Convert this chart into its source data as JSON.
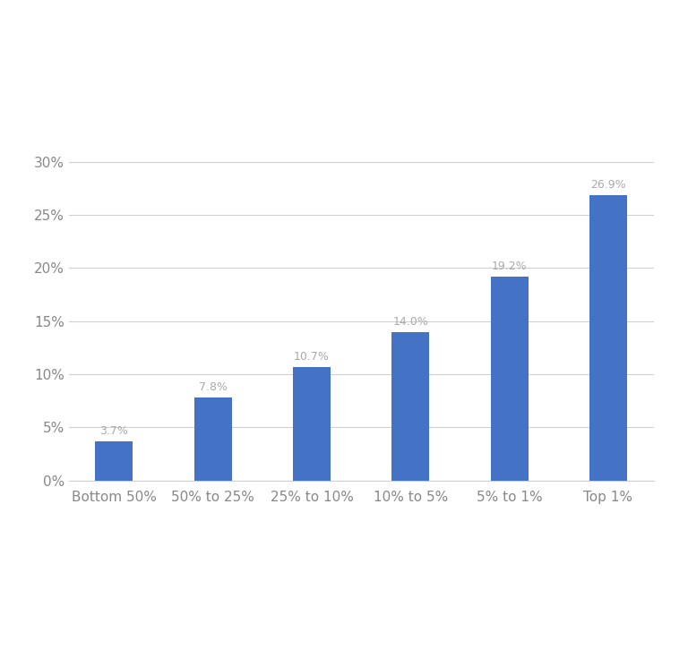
{
  "categories": [
    "Bottom 50%",
    "50% to 25%",
    "25% to 10%",
    "10% to 5%",
    "5% to 1%",
    "Top 1%"
  ],
  "values": [
    3.7,
    7.8,
    10.7,
    14.0,
    19.2,
    26.9
  ],
  "bar_color": "#4472C4",
  "bar_labels": [
    "3.7%",
    "7.8%",
    "10.7%",
    "14.0%",
    "19.2%",
    "26.9%"
  ],
  "ylim": [
    0,
    31
  ],
  "yticks": [
    0,
    5,
    10,
    15,
    20,
    25,
    30
  ],
  "ytick_labels": [
    "0%",
    "5%",
    "10%",
    "15%",
    "20%",
    "25%",
    "30%"
  ],
  "background_color": "#ffffff",
  "grid_color": "#d0d0d0",
  "label_color": "#aaaaaa",
  "tick_label_color": "#888888",
  "bar_label_fontsize": 9,
  "axis_tick_fontsize": 11,
  "bar_width": 0.38
}
